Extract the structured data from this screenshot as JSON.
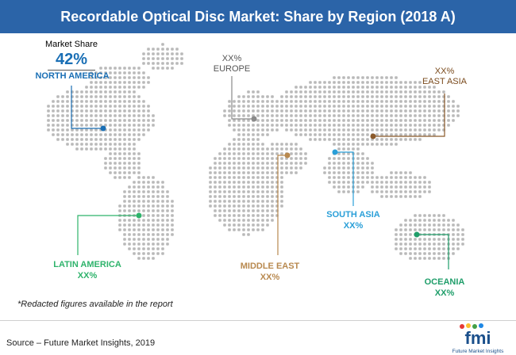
{
  "title": "Recordable Optical Disc Market: Share by Region (2018 A)",
  "share_heading": "Market Share",
  "regions": {
    "north_america": {
      "name": "NORTH AMERICA",
      "value": "42%",
      "color": "#1a6fb5"
    },
    "europe": {
      "name": "EUROPE",
      "value": "XX%",
      "color": "#8a8a8a"
    },
    "east_asia": {
      "name": "EAST ASIA",
      "value": "XX%",
      "color": "#8b5a2b"
    },
    "south_asia": {
      "name": "SOUTH ASIA",
      "value": "XX%",
      "color": "#2a9fd8"
    },
    "latin_america": {
      "name": "LATIN AMERICA",
      "value": "XX%",
      "color": "#2eb36b"
    },
    "middle_east": {
      "name": "MIDDLE EAST",
      "value": "XX%",
      "color": "#b8894f"
    },
    "oceania": {
      "name": "OCEANIA",
      "value": "XX%",
      "color": "#1f9e6a"
    }
  },
  "note": "*Redacted figures available in the report",
  "source": "Source – Future Market Insights, 2019",
  "logo": {
    "text": "fmi",
    "tagline": "Future Market Insights"
  }
}
